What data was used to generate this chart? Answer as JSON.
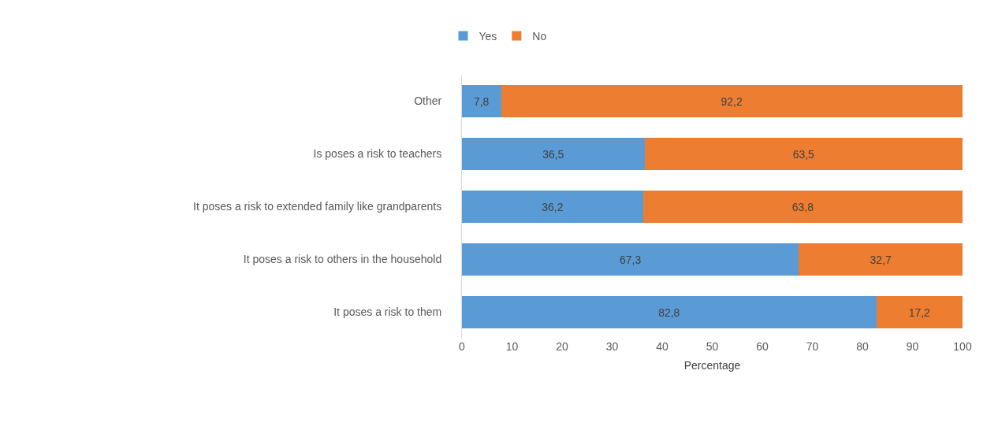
{
  "chart_data": {
    "type": "bar",
    "orientation": "horizontal",
    "stacked": true,
    "xlabel": "Percentage",
    "categories": [
      "Other",
      "Is poses a risk to teachers",
      "It poses a risk to extended family like grandparents",
      "It poses a risk to others in the household",
      "It poses a risk to them"
    ],
    "series": [
      {
        "name": "Yes",
        "color": "#5b9bd5",
        "values": [
          7.8,
          36.5,
          36.2,
          67.3,
          82.8
        ],
        "value_labels": [
          "7,8",
          "36,5",
          "36,2",
          "67,3",
          "82,8"
        ]
      },
      {
        "name": "No",
        "color": "#ed7d31",
        "values": [
          92.2,
          63.5,
          63.8,
          32.7,
          17.2
        ],
        "value_labels": [
          "92,2",
          "63,5",
          "63,8",
          "32,7",
          "17,2"
        ]
      }
    ],
    "xlim": [
      0,
      100
    ],
    "xticks": [
      0,
      10,
      20,
      30,
      40,
      50,
      60,
      70,
      80,
      90,
      100
    ],
    "grid": false,
    "legend": "top"
  }
}
